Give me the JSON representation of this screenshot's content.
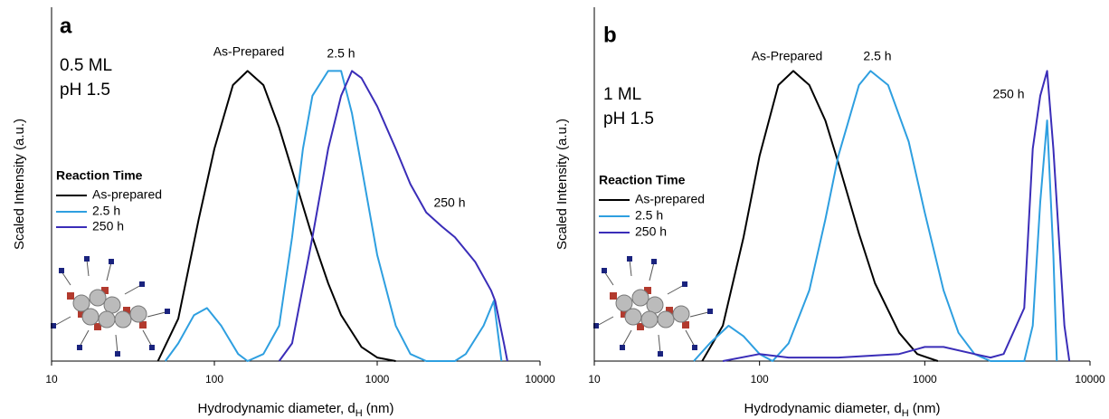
{
  "chart_data": [
    {
      "type": "line",
      "title": "a",
      "annotations": [
        "0.5 ML",
        "pH 1.5"
      ],
      "curve_labels": [
        "As-Prepared",
        "2.5 h",
        "250 h"
      ],
      "ylabel": "Scaled Intensity (a.u.)",
      "xlabel": {
        "text": "Hydrodynamic diameter, d",
        "subscript": "H",
        "unit": "(nm)"
      },
      "xscale": "log",
      "xlim": [
        10,
        10000
      ],
      "xticks": [
        10,
        100,
        1000,
        10000
      ],
      "ylim": [
        0,
        1
      ],
      "legend_title": "Reaction Time",
      "legend": "left",
      "series": [
        {
          "name": "As-prepared",
          "color": "#000000",
          "x": [
            45,
            60,
            80,
            100,
            130,
            160,
            200,
            250,
            300,
            400,
            500,
            600,
            800,
            1000,
            1300
          ],
          "values": [
            0,
            0.12,
            0.4,
            0.6,
            0.78,
            0.82,
            0.78,
            0.66,
            0.54,
            0.35,
            0.22,
            0.13,
            0.04,
            0.01,
            0
          ]
        },
        {
          "name": "2.5 h",
          "color": "#2e9fe0",
          "x": [
            50,
            60,
            75,
            90,
            110,
            140,
            160,
            200,
            250,
            300,
            350,
            400,
            500,
            600,
            700,
            800,
            1000,
            1300,
            1600,
            2000,
            3000,
            3500,
            4500,
            5200,
            5800
          ],
          "values": [
            0,
            0.05,
            0.13,
            0.15,
            0.1,
            0.02,
            0,
            0.02,
            0.1,
            0.35,
            0.6,
            0.75,
            0.82,
            0.82,
            0.7,
            0.55,
            0.3,
            0.1,
            0.02,
            0,
            0,
            0.02,
            0.1,
            0.17,
            0
          ]
        },
        {
          "name": "250 h",
          "color": "#3a2db8",
          "x": [
            250,
            300,
            400,
            500,
            600,
            700,
            800,
            1000,
            1300,
            1600,
            2000,
            2500,
            3000,
            4000,
            5000,
            5300,
            6000,
            6300
          ],
          "values": [
            0,
            0.05,
            0.35,
            0.6,
            0.75,
            0.82,
            0.8,
            0.72,
            0.6,
            0.5,
            0.42,
            0.38,
            0.35,
            0.28,
            0.2,
            0.17,
            0.05,
            0
          ]
        }
      ]
    },
    {
      "type": "line",
      "title": "b",
      "annotations": [
        "1 ML",
        "pH 1.5"
      ],
      "curve_labels": [
        "As-Prepared",
        "2.5 h",
        "250 h"
      ],
      "ylabel": "Scaled Intensity (a.u.)",
      "xlabel": {
        "text": "Hydrodynamic diameter, d",
        "subscript": "H",
        "unit": "(nm)"
      },
      "xscale": "log",
      "xlim": [
        10,
        10000
      ],
      "xticks": [
        10,
        100,
        1000,
        10000
      ],
      "ylim": [
        0,
        1
      ],
      "legend_title": "Reaction Time",
      "legend": "left",
      "series": [
        {
          "name": "As-prepared",
          "color": "#000000",
          "x": [
            45,
            60,
            80,
            100,
            130,
            160,
            200,
            250,
            300,
            400,
            500,
            700,
            900,
            1200
          ],
          "values": [
            0,
            0.1,
            0.35,
            0.58,
            0.78,
            0.82,
            0.78,
            0.68,
            0.56,
            0.36,
            0.22,
            0.08,
            0.02,
            0
          ]
        },
        {
          "name": "2.5 h",
          "color": "#2e9fe0",
          "x": [
            40,
            50,
            65,
            80,
            100,
            120,
            150,
            200,
            250,
            300,
            400,
            470,
            600,
            800,
            1000,
            1300,
            1600,
            2000,
            2500,
            4000,
            4500,
            5000,
            5500,
            6000,
            6300
          ],
          "values": [
            0,
            0.05,
            0.1,
            0.07,
            0.02,
            0,
            0.05,
            0.2,
            0.4,
            0.58,
            0.78,
            0.82,
            0.78,
            0.62,
            0.42,
            0.2,
            0.08,
            0.02,
            0,
            0,
            0.1,
            0.45,
            0.68,
            0.3,
            0
          ]
        },
        {
          "name": "250 h",
          "color": "#3a2db8",
          "x": [
            60,
            100,
            150,
            300,
            700,
            1000,
            1300,
            2000,
            2500,
            3000,
            4000,
            4500,
            5000,
            5500,
            6000,
            7000,
            7500
          ],
          "values": [
            0,
            0.02,
            0.01,
            0.01,
            0.02,
            0.04,
            0.04,
            0.02,
            0.01,
            0.02,
            0.15,
            0.6,
            0.75,
            0.82,
            0.6,
            0.1,
            0
          ]
        }
      ]
    }
  ]
}
